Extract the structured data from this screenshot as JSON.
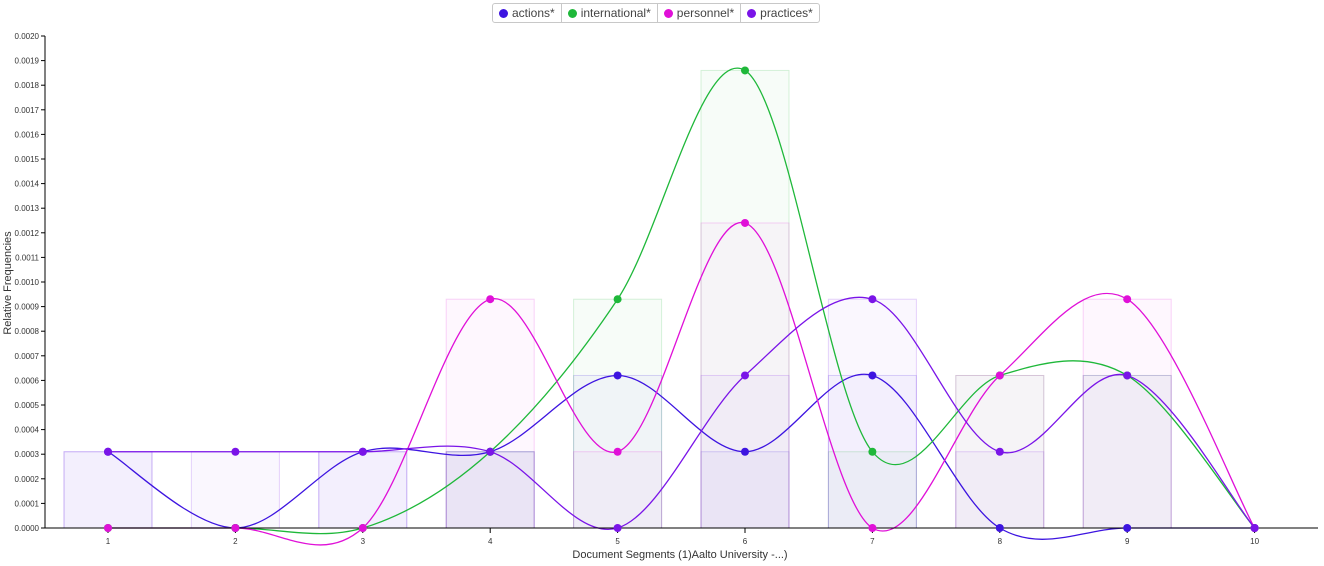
{
  "chart_data": {
    "type": "line",
    "xlabel": "Document Segments (1)Aalto University -...)",
    "ylabel": "Relative Frequencies",
    "x": [
      1,
      2,
      3,
      4,
      5,
      6,
      7,
      8,
      9,
      10
    ],
    "ylim": [
      0,
      0.002
    ],
    "yticks": [
      "0.0000",
      "0.0001",
      "0.0002",
      "0.0003",
      "0.0004",
      "0.0005",
      "0.0006",
      "0.0007",
      "0.0008",
      "0.0009",
      "0.0010",
      "0.0011",
      "0.0012",
      "0.0013",
      "0.0014",
      "0.0015",
      "0.0016",
      "0.0017",
      "0.0018",
      "0.0019",
      "0.0020"
    ],
    "legend_position": "top-center",
    "series": [
      {
        "name": "actions*",
        "color": "#3d14e0",
        "values": [
          0.00031,
          0,
          0.00031,
          0.00031,
          0.00062,
          0.00031,
          0.00062,
          0,
          0,
          0
        ]
      },
      {
        "name": "international*",
        "color": "#1fb83a",
        "values": [
          0,
          0,
          0,
          0.00031,
          0.00093,
          0.00186,
          0.00031,
          0.00062,
          0.00062,
          0
        ]
      },
      {
        "name": "personnel*",
        "color": "#e010d8",
        "values": [
          0,
          0,
          0,
          0.00093,
          0.00031,
          0.00124,
          0,
          0.00062,
          0.00093,
          0
        ]
      },
      {
        "name": "practices*",
        "color": "#7a14e8",
        "values": [
          0.00031,
          0.00031,
          0.00031,
          0.00031,
          0,
          0.00062,
          0.00093,
          0.00031,
          0.00062,
          0
        ]
      }
    ]
  }
}
